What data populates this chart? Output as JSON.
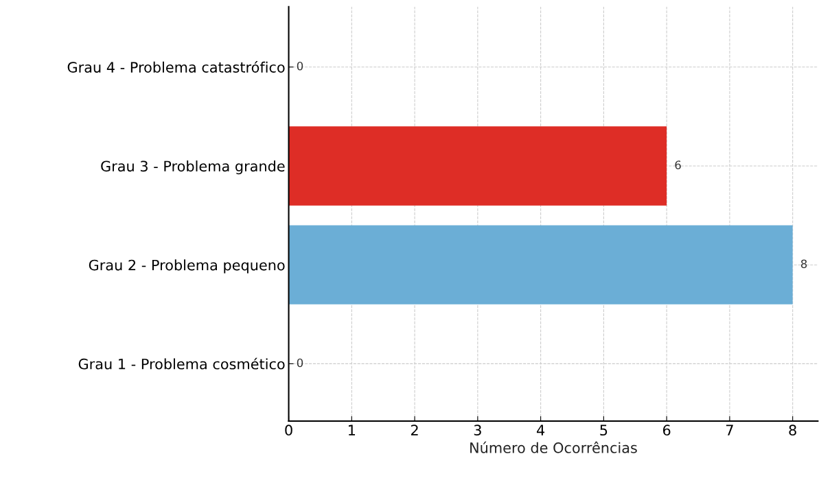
{
  "chart_data": {
    "type": "bar",
    "orientation": "horizontal",
    "xlabel": "Número de Ocorrências",
    "categories": [
      "Grau 4 - Problema catastrófico",
      "Grau 3 - Problema grande",
      "Grau 2 - Problema pequeno",
      "Grau 1 - Problema cosmético"
    ],
    "values": [
      0,
      6,
      8,
      0
    ],
    "colors": [
      "#7f7f7f",
      "#de2d26",
      "#6baed6",
      "#9e9ac8"
    ],
    "xlim": [
      0,
      8.4
    ],
    "xticks": [
      0,
      1,
      2,
      3,
      4,
      5,
      6,
      7,
      8
    ],
    "grid": true,
    "line_style": "dashed",
    "data_labels": true
  }
}
